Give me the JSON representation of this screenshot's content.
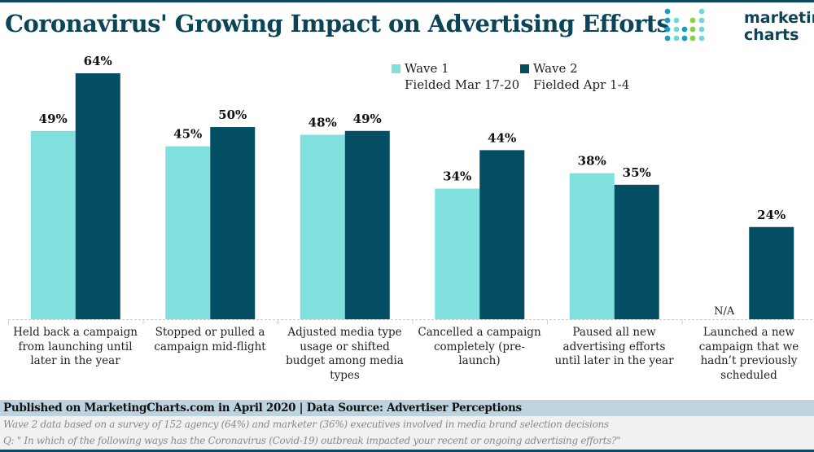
{
  "header": {
    "title": "Coronavirus' Growing Impact on Advertising Efforts",
    "logo_line1": "marketing",
    "logo_line2": "charts"
  },
  "colors": {
    "wave1": "#7fe0de",
    "wave2": "#034e63",
    "title": "#0b4457",
    "footer_band": "#bdd3df"
  },
  "legend": [
    {
      "name": "Wave 1",
      "sub": "Fielded Mar 17-20"
    },
    {
      "name": "Wave 2",
      "sub": "Fielded Apr 1-4"
    }
  ],
  "chart_data": {
    "type": "bar",
    "title": "Coronavirus' Growing Impact on Advertising Efforts",
    "xlabel": "",
    "ylabel": "",
    "ylim": [
      0,
      64
    ],
    "grid": false,
    "legend_position": "top-right",
    "categories": [
      "Held back a campaign from launching until later in the year",
      "Stopped or pulled a campaign mid-flight",
      "Adjusted media type usage or shifted budget among media types",
      "Cancelled a campaign completely (pre-launch)",
      "Paused all new advertising efforts until later in the year",
      "Launched a new campaign that we hadn't previously scheduled"
    ],
    "category_lines": [
      [
        "Held back a campaign",
        "from launching until",
        "later in the year"
      ],
      [
        "Stopped or pulled a",
        "campaign mid-flight"
      ],
      [
        "Adjusted media type",
        "usage or shifted",
        "budget among media",
        "types"
      ],
      [
        "Cancelled a campaign",
        "completely (pre-",
        "launch)"
      ],
      [
        "Paused all new",
        "advertising efforts",
        "until later in the year"
      ],
      [
        "Launched a new",
        "campaign that we",
        "hadn’t previously",
        "scheduled"
      ]
    ],
    "series": [
      {
        "name": "Wave 1 (Fielded Mar 17-20)",
        "values": [
          49,
          45,
          48,
          34,
          38,
          null
        ],
        "labels": [
          "49%",
          "45%",
          "48%",
          "34%",
          "38%",
          "N/A"
        ]
      },
      {
        "name": "Wave 2 (Fielded Apr 1-4)",
        "values": [
          64,
          50,
          49,
          44,
          35,
          24
        ],
        "labels": [
          "64%",
          "50%",
          "49%",
          "44%",
          "35%",
          "24%"
        ]
      }
    ]
  },
  "footer": {
    "published": "Published on MarketingCharts.com in April 2020 | Data Source: Advertiser Perceptions",
    "note1": "Wave 2 data based on a survey of 152 agency (64%) and marketer (36%) executives involved in media brand selection decisions",
    "note2": "Q: \" In which of the following ways has the Coronavirus (Covid-19) outbreak impacted your recent or ongoing advertising efforts?\""
  }
}
